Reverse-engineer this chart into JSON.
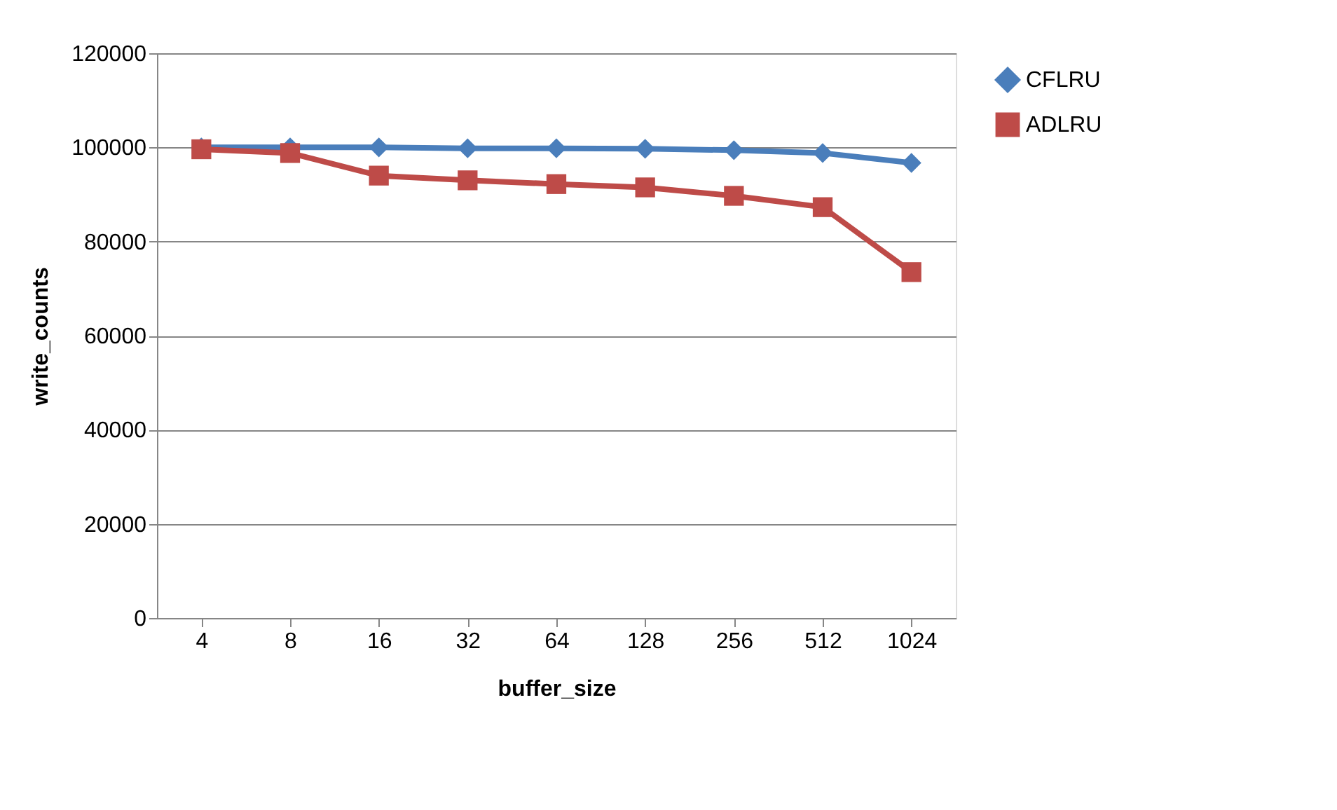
{
  "chart_data": {
    "type": "line",
    "xlabel": "buffer_size",
    "ylabel": "write_counts",
    "categories": [
      "4",
      "8",
      "16",
      "32",
      "64",
      "128",
      "256",
      "512",
      "1024"
    ],
    "series": [
      {
        "name": "CFLRU",
        "color": "#4a7ebb",
        "marker": "diamond",
        "values": [
          100000,
          100000,
          100000,
          99800,
          99800,
          99700,
          99400,
          98800,
          96700
        ]
      },
      {
        "name": "ADLRU",
        "color": "#be4b48",
        "marker": "square",
        "values": [
          99600,
          98800,
          94000,
          93000,
          92200,
          91500,
          89700,
          87300,
          73500
        ]
      }
    ],
    "ylim": [
      0,
      120000
    ],
    "yticks": [
      0,
      20000,
      40000,
      60000,
      80000,
      100000,
      120000
    ],
    "grid": "y",
    "legend": "right"
  }
}
